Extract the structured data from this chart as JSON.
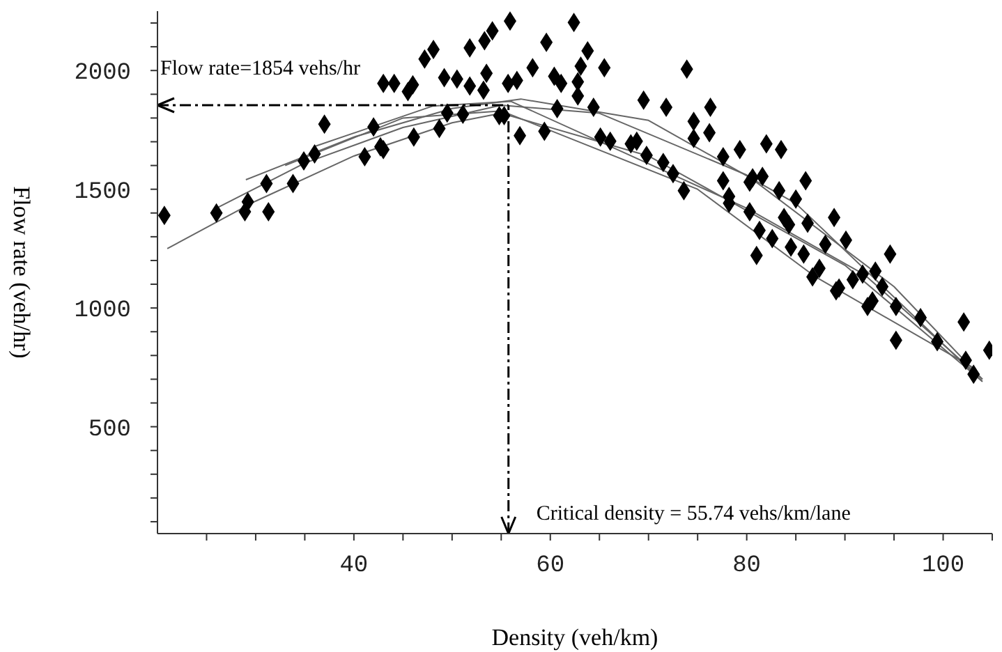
{
  "chart_data": {
    "type": "scatter",
    "xlabel": "Density (veh/km)",
    "ylabel": "Flow rate (veh/hr)",
    "xlim": [
      20,
      105
    ],
    "xticks": [
      {
        "value": 25,
        "label": null
      },
      {
        "value": 30,
        "label": null
      },
      {
        "value": 35,
        "label": null
      },
      40,
      {
        "value": 45,
        "label": null
      },
      {
        "value": 50,
        "label": null
      },
      {
        "value": 55,
        "label": null
      },
      60,
      {
        "value": 65,
        "label": null
      },
      {
        "value": 70,
        "label": null
      },
      {
        "value": 75,
        "label": null
      },
      80,
      {
        "value": 85,
        "label": null
      },
      {
        "value": 90,
        "label": null
      },
      {
        "value": 95,
        "label": null
      },
      100,
      {
        "value": 105,
        "label": null
      }
    ],
    "ylim": [
      50,
      2250
    ],
    "yticks": [
      {
        "value": 100,
        "label": null
      },
      {
        "value": 200,
        "label": null
      },
      {
        "value": 300,
        "label": null
      },
      {
        "value": 400,
        "label": null
      },
      500,
      {
        "value": 600,
        "label": null
      },
      {
        "value": 700,
        "label": null
      },
      {
        "value": 800,
        "label": null
      },
      {
        "value": 900,
        "label": null
      },
      1000,
      {
        "value": 1100,
        "label": null
      },
      {
        "value": 1200,
        "label": null
      },
      {
        "value": 1300,
        "label": null
      },
      {
        "value": 1400,
        "label": null
      },
      1500,
      {
        "value": 1600,
        "label": null
      },
      {
        "value": 1700,
        "label": null
      },
      {
        "value": 1800,
        "label": null
      },
      {
        "value": 1900,
        "label": null
      },
      2000,
      {
        "value": 2100,
        "label": null
      },
      {
        "value": 2200,
        "label": null
      }
    ],
    "grid": false,
    "legend": false,
    "series": [
      {
        "type": "line",
        "color": "#666666",
        "marker": "none",
        "x": [
          21,
          30,
          40,
          50,
          55,
          70,
          90,
          104
        ],
        "values": [
          1250,
          1450,
          1640,
          1780,
          1820,
          1640,
          1180,
          690
        ]
      },
      {
        "type": "line",
        "color": "#666666",
        "marker": "none",
        "x": [
          26,
          35,
          45,
          55,
          65,
          80,
          95,
          104
        ],
        "values": [
          1420,
          1610,
          1760,
          1854,
          1820,
          1560,
          1090,
          700
        ]
      },
      {
        "type": "line",
        "color": "#666666",
        "marker": "none",
        "x": [
          29,
          40,
          50,
          57,
          70,
          85,
          104
        ],
        "values": [
          1540,
          1720,
          1840,
          1880,
          1790,
          1440,
          690
        ]
      },
      {
        "type": "line",
        "color": "#666666",
        "marker": "none",
        "x": [
          33,
          45,
          55,
          75,
          87,
          103
        ],
        "values": [
          1600,
          1800,
          1830,
          1500,
          1131,
          750
        ]
      },
      {
        "type": "line",
        "color": "#666666",
        "marker": "none",
        "x": [
          36,
          48,
          56,
          80,
          92,
          104
        ],
        "values": [
          1680,
          1850,
          1870,
          1420,
          1140,
          700
        ]
      },
      {
        "color": "#000000",
        "marker": "diamond",
        "x": [
          20.7,
          26,
          28.9,
          29.2,
          31.1,
          31.3,
          33.8,
          34.9,
          36,
          37,
          41.1,
          42,
          42.7,
          43,
          43,
          44.1,
          46,
          45.5,
          46.1,
          47.2,
          48.1,
          48.7,
          49.2,
          49.5,
          50.5,
          51.1,
          51.8,
          51.8,
          53.3,
          53.5,
          54.1,
          53.2,
          54.8,
          55.9,
          62.4,
          59.6,
          63.8,
          58.2,
          63.1,
          65.5,
          60.4,
          61.1,
          62.8,
          55.7,
          56.6,
          73.9,
          62.8,
          69.5,
          71.8,
          76.3,
          74.6,
          76.2,
          74.6,
          64.4,
          60.7,
          59.4,
          56.9,
          55.3,
          65.1,
          66.1,
          68.2,
          68.8,
          69.8,
          71.5,
          72.5,
          73.6,
          77.6,
          79.3,
          82,
          83.5,
          77.6,
          78.2,
          78.2,
          80.3,
          80.6,
          81.6,
          80.3,
          83.3,
          85,
          86,
          83.8,
          84.3,
          86.2,
          88.9,
          90.1,
          81.3,
          82.6,
          84.5,
          85.8,
          81,
          87.4,
          86.7,
          88,
          89.1,
          89.4,
          90.8,
          91.8,
          93.1,
          93.8,
          94.6,
          92.3,
          92.8,
          95.2,
          97.7,
          102.1,
          95.2,
          99.4,
          102.3,
          103.1,
          104.7
        ],
        "values": [
          1390,
          1400,
          1405,
          1447,
          1524,
          1405,
          1524,
          1619,
          1649,
          1774,
          1637,
          1762,
          1679,
          1667,
          1946,
          1946,
          1940,
          1911,
          1720,
          2048,
          2089,
          1756,
          1970,
          1821,
          1964,
          1816,
          2095,
          1935,
          2125,
          1988,
          2167,
          1917,
          1810,
          2208,
          2202,
          2119,
          2083,
          2012,
          2018,
          2012,
          1976,
          1946,
          1952,
          1946,
          1958,
          2006,
          1893,
          1875,
          1845,
          1845,
          1786,
          1738,
          1714,
          1845,
          1839,
          1744,
          1726,
          1810,
          1720,
          1702,
          1691,
          1702,
          1643,
          1613,
          1566,
          1494,
          1637,
          1667,
          1691,
          1667,
          1536,
          1470,
          1441,
          1530,
          1548,
          1554,
          1405,
          1494,
          1459,
          1536,
          1381,
          1351,
          1357,
          1381,
          1286,
          1327,
          1292,
          1256,
          1227,
          1221,
          1167,
          1131,
          1268,
          1072,
          1084,
          1119,
          1143,
          1155,
          1090,
          1227,
          1006,
          1030,
          1006,
          959,
          941,
          864,
          858,
          780,
          721,
          822
        ]
      }
    ],
    "ref_lines": [
      {
        "axis": "y",
        "value": 1854,
        "label": "Flow rate=1854 vehs/hr",
        "color": "#000000",
        "line_style": "dashed"
      },
      {
        "axis": "x",
        "value": 55.74,
        "label": "Critical density = 55.74 vehs/km/lane",
        "color": "#000000",
        "line_style": "dashed"
      }
    ]
  }
}
